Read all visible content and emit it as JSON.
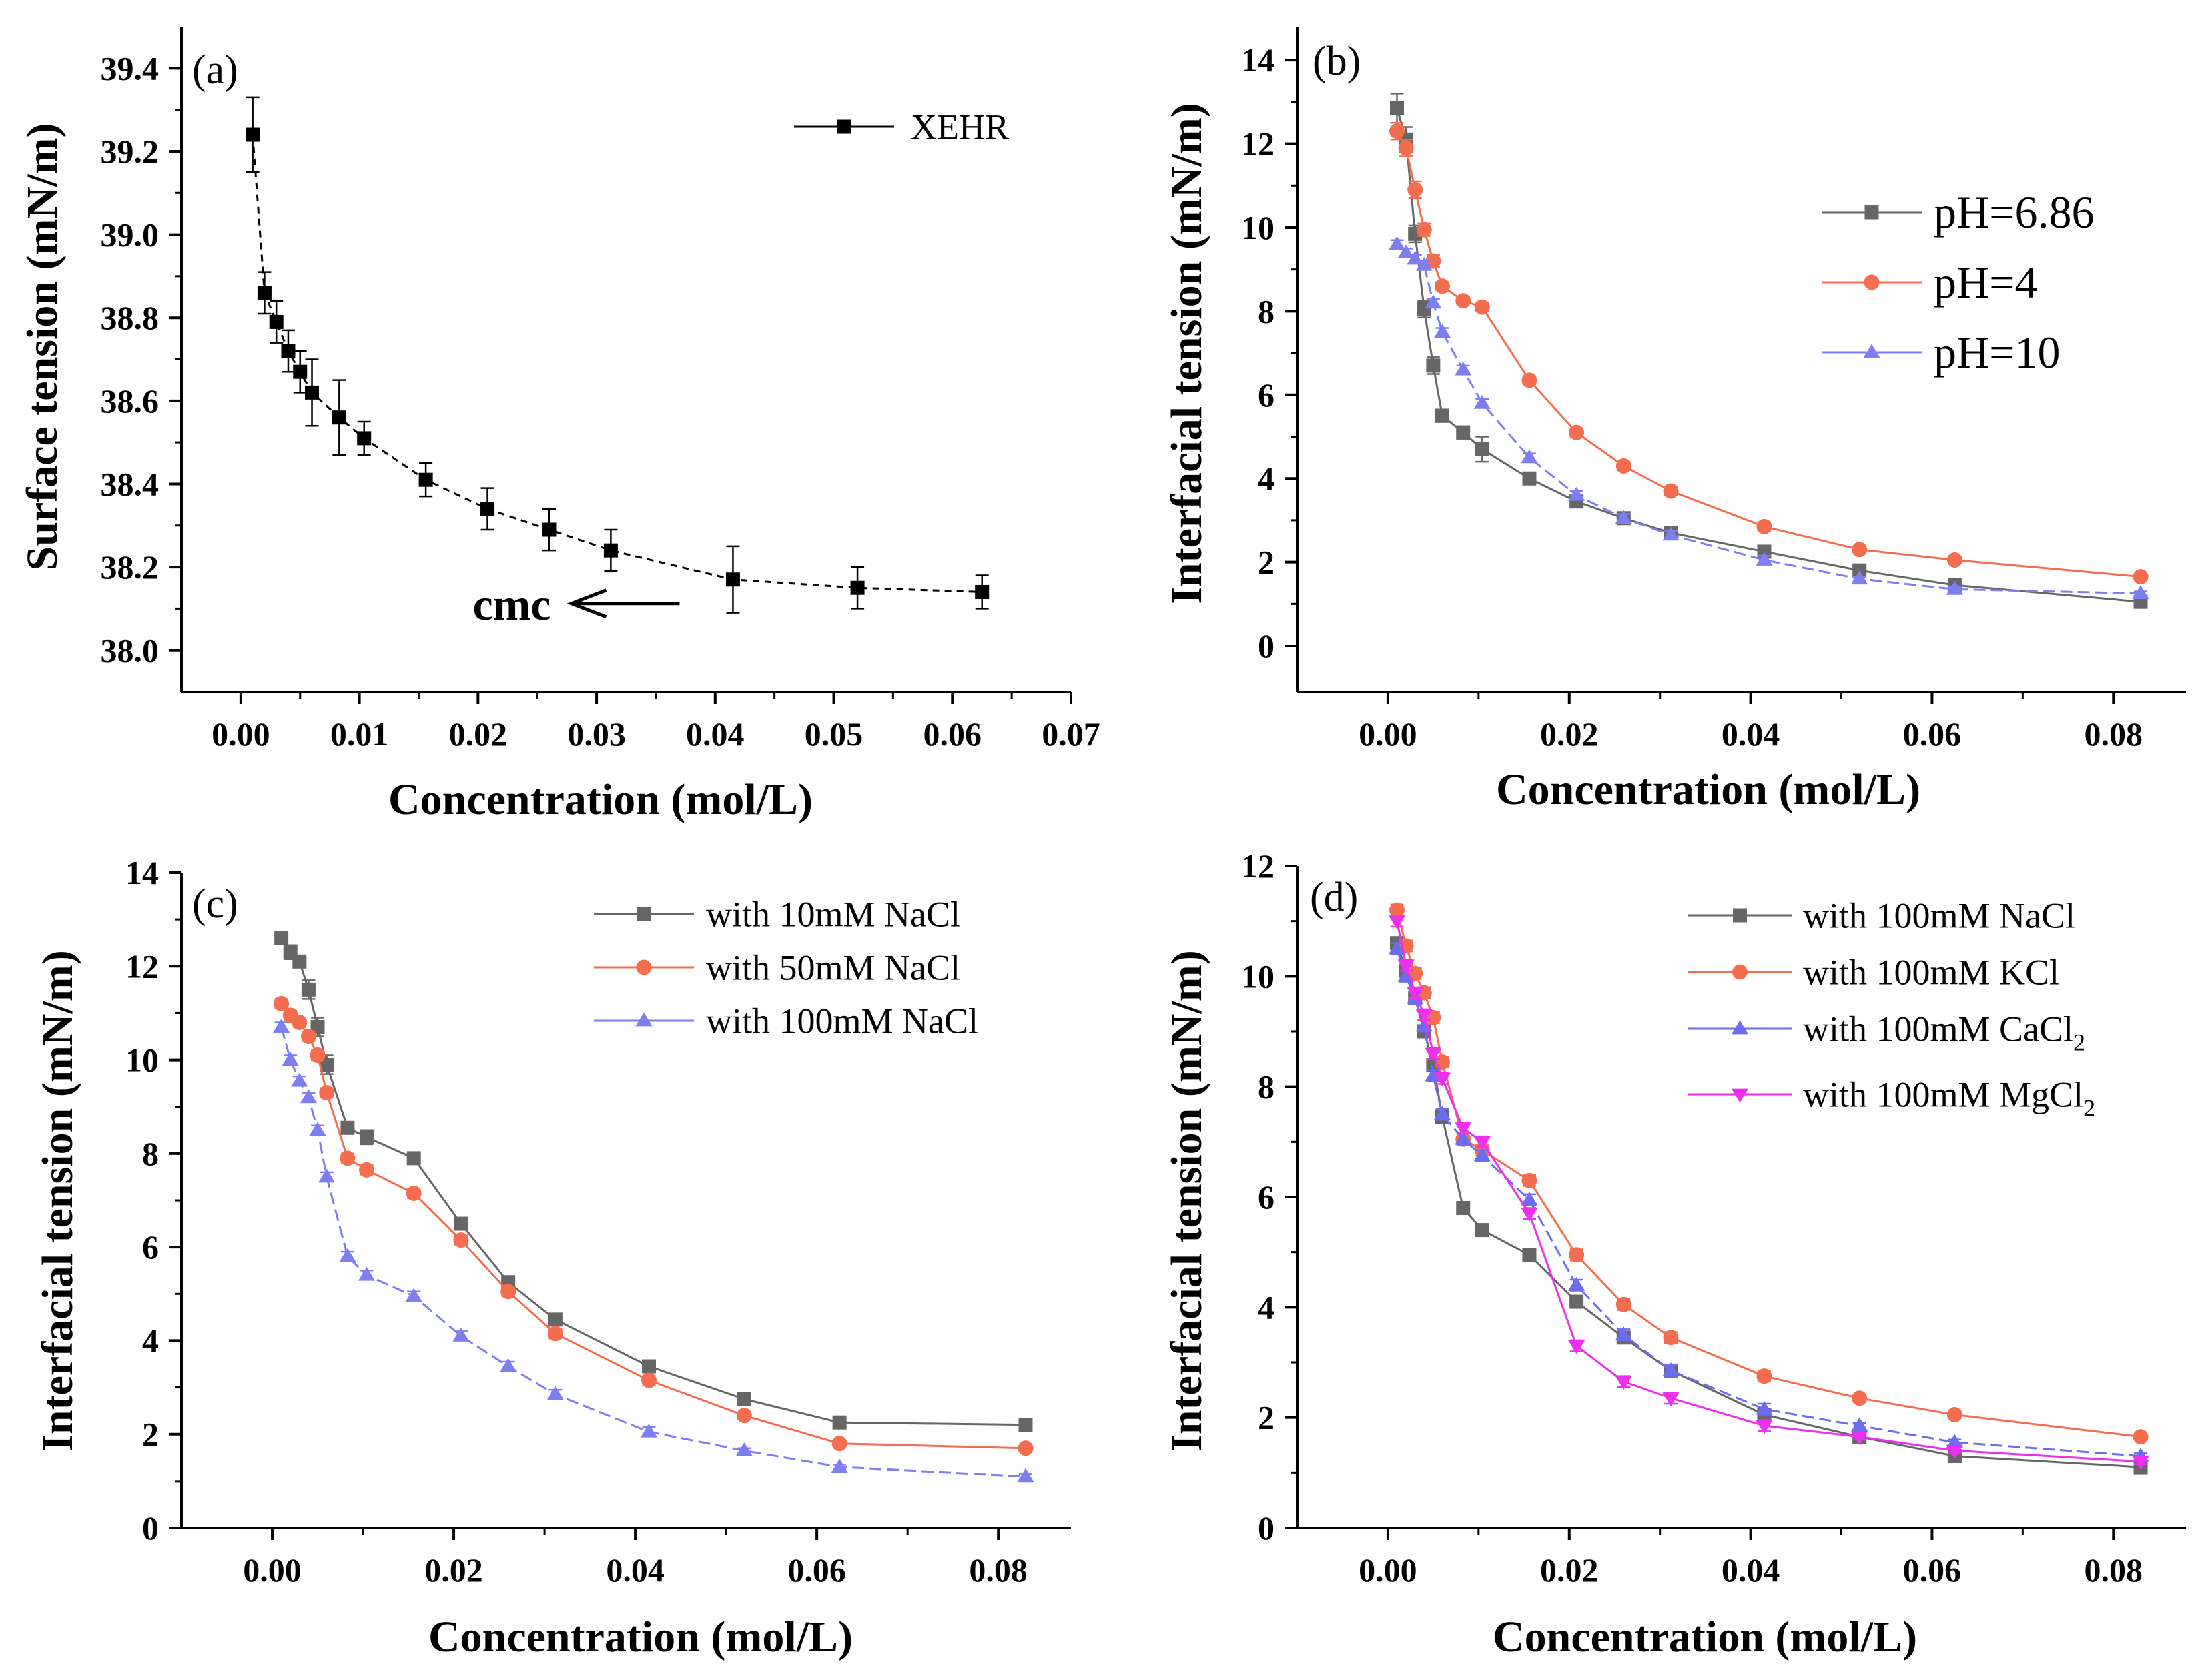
{
  "figure": {
    "caption": ""
  },
  "chart_data": [
    {
      "panel": "(a)",
      "type": "line",
      "title": "",
      "xlabel": "Concentration (mol/L)",
      "ylabel": "Surface tension (mN/m)",
      "xlim": [
        -0.005,
        0.07
      ],
      "ylim": [
        37.9,
        39.5
      ],
      "xticks": [
        0,
        0.01,
        0.02,
        0.03,
        0.04,
        0.05,
        0.06,
        0.07
      ],
      "xtick_labels": [
        "0.00",
        "0.01",
        "0.02",
        "0.03",
        "0.04",
        "0.05",
        "0.06",
        "0.07"
      ],
      "yticks": [
        38.0,
        38.2,
        38.4,
        38.6,
        38.8,
        39.0,
        39.2,
        39.4
      ],
      "ytick_labels": [
        "38.0",
        "38.2",
        "38.4",
        "38.6",
        "38.8",
        "39.0",
        "39.2",
        "39.4"
      ],
      "legend_position": "top-right",
      "annotations": [
        {
          "text": "cmc",
          "x": 0.0415,
          "y": 38.17,
          "arrow": true
        }
      ],
      "series": [
        {
          "name": "XEHR",
          "color": "#000000",
          "marker": "square",
          "dash": "10,8",
          "x": [
            0.001,
            0.002,
            0.003,
            0.004,
            0.005,
            0.006,
            0.0083,
            0.0104,
            0.0156,
            0.0208,
            0.026,
            0.0312,
            0.0415,
            0.052,
            0.0625
          ],
          "y": [
            39.24,
            38.86,
            38.79,
            38.72,
            38.67,
            38.62,
            38.56,
            38.51,
            38.41,
            38.34,
            38.29,
            38.24,
            38.17,
            38.15,
            38.14
          ],
          "yerr": [
            0.09,
            0.05,
            0.05,
            0.05,
            0.05,
            0.08,
            0.09,
            0.04,
            0.04,
            0.05,
            0.05,
            0.05,
            0.08,
            0.05,
            0.04
          ]
        }
      ]
    },
    {
      "panel": "(b)",
      "type": "line",
      "title": "",
      "xlabel": "Concentration (mol/L)",
      "ylabel": "Interfacial tension (mN/m)",
      "xlim": [
        -0.01,
        0.088
      ],
      "ylim": [
        -1.1,
        14.8
      ],
      "xticks": [
        0,
        0.02,
        0.04,
        0.06,
        0.08
      ],
      "xtick_labels": [
        "0.00",
        "0.02",
        "0.04",
        "0.06",
        "0.08"
      ],
      "yticks": [
        0,
        2,
        4,
        6,
        8,
        10,
        12,
        14
      ],
      "ytick_labels": [
        "0",
        "2",
        "4",
        "6",
        "8",
        "10",
        "12",
        "14"
      ],
      "legend_position": "top-right",
      "series": [
        {
          "name": "pH=6.86",
          "color": "#666666",
          "marker": "square",
          "x": [
            0.001,
            0.002,
            0.003,
            0.004,
            0.005,
            0.006,
            0.0083,
            0.0104,
            0.0156,
            0.0208,
            0.026,
            0.0312,
            0.0415,
            0.052,
            0.0625,
            0.083
          ],
          "y": [
            12.85,
            12.1,
            9.85,
            8.05,
            6.7,
            5.5,
            5.1,
            4.7,
            4.0,
            3.45,
            3.05,
            2.7,
            2.25,
            1.8,
            1.45,
            1.05
          ],
          "yerr": [
            0.35,
            0.3,
            0.2,
            0.2,
            0.2,
            0.15,
            0.15,
            0.3,
            0.1,
            0.1,
            0.1,
            0.1,
            0.1,
            0.1,
            0.1,
            0.05
          ]
        },
        {
          "name": "pH=4",
          "color": "#f46d4e",
          "marker": "circle",
          "x": [
            0.001,
            0.002,
            0.003,
            0.004,
            0.005,
            0.006,
            0.0083,
            0.0104,
            0.0156,
            0.0208,
            0.026,
            0.0312,
            0.0415,
            0.052,
            0.0625,
            0.083
          ],
          "y": [
            12.3,
            11.9,
            10.9,
            9.95,
            9.2,
            8.6,
            8.25,
            8.1,
            6.35,
            5.1,
            4.3,
            3.7,
            2.85,
            2.3,
            2.05,
            1.65
          ],
          "yerr": [
            0.2,
            0.2,
            0.2,
            0.15,
            0.15,
            0.1,
            0.1,
            0.1,
            0.1,
            0.1,
            0.1,
            0.1,
            0.1,
            0.05,
            0.05,
            0.05
          ]
        },
        {
          "name": "pH=10",
          "color": "#7e7ef0",
          "marker": "triangle",
          "x": [
            0.001,
            0.002,
            0.003,
            0.004,
            0.005,
            0.006,
            0.0083,
            0.0104,
            0.0156,
            0.0208,
            0.026,
            0.0312,
            0.0415,
            0.052,
            0.0625,
            0.083
          ],
          "y": [
            9.6,
            9.4,
            9.25,
            9.1,
            8.2,
            7.5,
            6.6,
            5.8,
            4.5,
            3.6,
            3.05,
            2.65,
            2.05,
            1.6,
            1.35,
            1.25
          ],
          "yerr": [
            0.1,
            0.1,
            0.1,
            0.1,
            0.1,
            0.1,
            0.1,
            0.1,
            0.1,
            0.1,
            0.1,
            0.1,
            0.1,
            0.05,
            0.05,
            0.05
          ]
        }
      ]
    },
    {
      "panel": "(c)",
      "type": "line",
      "title": "",
      "xlabel": "Concentration (mol/L)",
      "ylabel": "Interfacial tension (mN/m)",
      "xlim": [
        -0.01,
        0.088
      ],
      "ylim": [
        0,
        14
      ],
      "xticks": [
        0,
        0.02,
        0.04,
        0.06,
        0.08
      ],
      "xtick_labels": [
        "0.00",
        "0.02",
        "0.04",
        "0.06",
        "0.08"
      ],
      "yticks": [
        0,
        2,
        4,
        6,
        8,
        10,
        12,
        14
      ],
      "ytick_labels": [
        "0",
        "2",
        "4",
        "6",
        "8",
        "10",
        "12",
        "14"
      ],
      "legend_position": "top-right",
      "series": [
        {
          "name": "with 10mM NaCl",
          "color": "#666666",
          "marker": "square",
          "x": [
            0.001,
            0.002,
            0.003,
            0.004,
            0.005,
            0.006,
            0.0083,
            0.0104,
            0.0156,
            0.0208,
            0.026,
            0.0312,
            0.0415,
            0.052,
            0.0625,
            0.083
          ],
          "y": [
            12.6,
            12.3,
            12.1,
            11.5,
            10.7,
            9.9,
            8.55,
            8.35,
            7.9,
            6.5,
            5.25,
            4.45,
            3.45,
            2.75,
            2.25,
            2.2
          ],
          "yerr": [
            0.1,
            0.15,
            0.1,
            0.2,
            0.2,
            0.2,
            0.1,
            0.15,
            0.1,
            0.1,
            0.1,
            0.1,
            0.1,
            0.05,
            0.05,
            0.05
          ]
        },
        {
          "name": "with 50mM NaCl",
          "color": "#f46d4e",
          "marker": "circle",
          "x": [
            0.001,
            0.002,
            0.003,
            0.004,
            0.005,
            0.006,
            0.0083,
            0.0104,
            0.0156,
            0.0208,
            0.026,
            0.0312,
            0.0415,
            0.052,
            0.0625,
            0.083
          ],
          "y": [
            11.2,
            10.95,
            10.8,
            10.5,
            10.1,
            9.3,
            7.9,
            7.65,
            7.15,
            6.15,
            5.05,
            4.15,
            3.15,
            2.4,
            1.8,
            1.7
          ],
          "yerr": [
            0.1,
            0.1,
            0.1,
            0.1,
            0.1,
            0.1,
            0.1,
            0.1,
            0.1,
            0.1,
            0.1,
            0.1,
            0.1,
            0.05,
            0.05,
            0.05
          ]
        },
        {
          "name": "with 100mM NaCl",
          "color": "#7e7ef0",
          "marker": "triangle",
          "x": [
            0.001,
            0.002,
            0.003,
            0.004,
            0.005,
            0.006,
            0.0083,
            0.0104,
            0.0156,
            0.0208,
            0.026,
            0.0312,
            0.0415,
            0.052,
            0.0625,
            0.083
          ],
          "y": [
            10.7,
            10.0,
            9.55,
            9.2,
            8.5,
            7.5,
            5.8,
            5.4,
            4.95,
            4.1,
            3.45,
            2.85,
            2.05,
            1.65,
            1.3,
            1.1
          ],
          "yerr": [
            0.1,
            0.1,
            0.1,
            0.1,
            0.1,
            0.1,
            0.1,
            0.1,
            0.1,
            0.1,
            0.1,
            0.1,
            0.1,
            0.05,
            0.05,
            0.05
          ]
        }
      ]
    },
    {
      "panel": "(d)",
      "type": "line",
      "title": "",
      "xlabel": "Concentration (mol/L)",
      "ylabel": "Interfacial tension (mN/m)",
      "xlim": [
        -0.01,
        0.088
      ],
      "ylim": [
        0,
        12
      ],
      "xticks": [
        0,
        0.02,
        0.04,
        0.06,
        0.08
      ],
      "xtick_labels": [
        "0.00",
        "0.02",
        "0.04",
        "0.06",
        "0.08"
      ],
      "yticks": [
        0,
        2,
        4,
        6,
        8,
        10,
        12
      ],
      "ytick_labels": [
        "0",
        "2",
        "4",
        "6",
        "8",
        "10",
        "12"
      ],
      "legend_position": "top-right",
      "series": [
        {
          "name": "with 100mM NaCl",
          "color": "#666666",
          "marker": "square",
          "x": [
            0.001,
            0.002,
            0.003,
            0.004,
            0.005,
            0.006,
            0.0083,
            0.0104,
            0.0156,
            0.0208,
            0.026,
            0.0312,
            0.0415,
            0.052,
            0.0625,
            0.083
          ],
          "y": [
            10.6,
            10.1,
            9.6,
            9.0,
            8.4,
            7.45,
            5.8,
            5.4,
            4.95,
            4.1,
            3.45,
            2.85,
            2.05,
            1.65,
            1.3,
            1.1
          ],
          "yerr": [
            0.1,
            0.1,
            0.1,
            0.1,
            0.1,
            0.1,
            0.1,
            0.1,
            0.1,
            0.1,
            0.1,
            0.1,
            0.1,
            0.05,
            0.05,
            0.05
          ]
        },
        {
          "name": "with 100mM KCl",
          "color": "#f46d4e",
          "marker": "circle",
          "x": [
            0.001,
            0.002,
            0.003,
            0.004,
            0.005,
            0.006,
            0.0083,
            0.0104,
            0.0156,
            0.0208,
            0.026,
            0.0312,
            0.0415,
            0.052,
            0.0625,
            0.083
          ],
          "y": [
            11.2,
            10.55,
            10.05,
            9.7,
            9.25,
            8.45,
            7.05,
            6.85,
            6.3,
            4.95,
            4.05,
            3.45,
            2.75,
            2.35,
            2.05,
            1.65
          ],
          "yerr": [
            0.1,
            0.1,
            0.1,
            0.1,
            0.1,
            0.1,
            0.1,
            0.1,
            0.1,
            0.1,
            0.1,
            0.1,
            0.1,
            0.05,
            0.05,
            0.05
          ]
        },
        {
          "name": "with 100mM CaCl",
          "name_sub": "2",
          "color": "#6c6cee",
          "marker": "triangle",
          "x": [
            0.001,
            0.002,
            0.003,
            0.004,
            0.005,
            0.006,
            0.0083,
            0.0104,
            0.0156,
            0.0208,
            0.026,
            0.0312,
            0.0415,
            0.052,
            0.0625,
            0.083
          ],
          "y": [
            10.5,
            10.0,
            9.6,
            9.1,
            8.2,
            7.5,
            7.05,
            6.75,
            5.95,
            4.4,
            3.5,
            2.85,
            2.15,
            1.85,
            1.55,
            1.3
          ],
          "yerr": [
            0.1,
            0.1,
            0.1,
            0.1,
            0.1,
            0.1,
            0.1,
            0.1,
            0.1,
            0.1,
            0.1,
            0.1,
            0.1,
            0.05,
            0.05,
            0.05
          ]
        },
        {
          "name": "with 100mM MgCl",
          "name_sub": "2",
          "color": "#ee2fee",
          "marker": "triangle-down",
          "x": [
            0.001,
            0.002,
            0.003,
            0.004,
            0.005,
            0.006,
            0.0083,
            0.0104,
            0.0156,
            0.0208,
            0.026,
            0.0312,
            0.0415,
            0.052,
            0.0625,
            0.083
          ],
          "y": [
            11.0,
            10.2,
            9.7,
            9.3,
            8.6,
            8.15,
            7.25,
            7.0,
            5.7,
            3.3,
            2.65,
            2.35,
            1.85,
            1.65,
            1.4,
            1.2
          ],
          "yerr": [
            0.1,
            0.1,
            0.1,
            0.1,
            0.1,
            0.1,
            0.1,
            0.1,
            0.1,
            0.1,
            0.1,
            0.1,
            0.1,
            0.05,
            0.05,
            0.05
          ]
        }
      ]
    }
  ]
}
